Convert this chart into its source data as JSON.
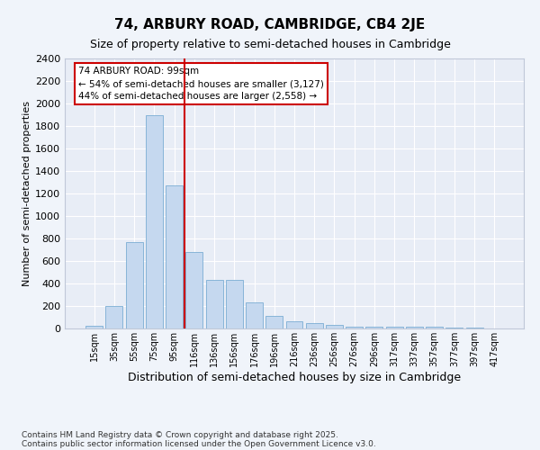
{
  "title": "74, ARBURY ROAD, CAMBRIDGE, CB4 2JE",
  "subtitle": "Size of property relative to semi-detached houses in Cambridge",
  "xlabel": "Distribution of semi-detached houses by size in Cambridge",
  "ylabel": "Number of semi-detached properties",
  "bar_color": "#c5d8ef",
  "bar_edge_color": "#7aadd4",
  "background_color": "#e8edf6",
  "fig_background_color": "#f0f4fa",
  "grid_color": "#ffffff",
  "categories": [
    "15sqm",
    "35sqm",
    "55sqm",
    "75sqm",
    "95sqm",
    "116sqm",
    "136sqm",
    "156sqm",
    "176sqm",
    "196sqm",
    "216sqm",
    "236sqm",
    "256sqm",
    "276sqm",
    "296sqm",
    "317sqm",
    "337sqm",
    "357sqm",
    "377sqm",
    "397sqm",
    "417sqm"
  ],
  "values": [
    25,
    200,
    770,
    1900,
    1270,
    680,
    430,
    430,
    230,
    110,
    65,
    45,
    30,
    20,
    20,
    20,
    15,
    15,
    10,
    5,
    2
  ],
  "ylim": [
    0,
    2400
  ],
  "yticks": [
    0,
    200,
    400,
    600,
    800,
    1000,
    1200,
    1400,
    1600,
    1800,
    2000,
    2200,
    2400
  ],
  "property_line_x": 4.5,
  "annotation_text": "74 ARBURY ROAD: 99sqm\n← 54% of semi-detached houses are smaller (3,127)\n44% of semi-detached houses are larger (2,558) →",
  "annotation_box_color": "#ffffff",
  "annotation_border_color": "#cc0000",
  "footer_line1": "Contains HM Land Registry data © Crown copyright and database right 2025.",
  "footer_line2": "Contains public sector information licensed under the Open Government Licence v3.0.",
  "property_line_color": "#cc0000",
  "title_fontsize": 11,
  "subtitle_fontsize": 9
}
